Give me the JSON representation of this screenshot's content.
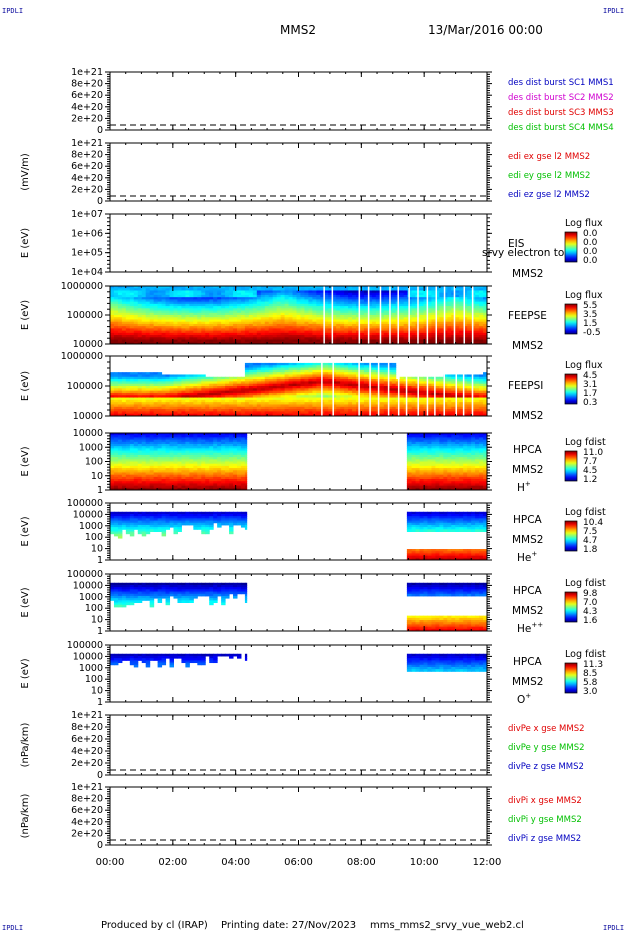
{
  "header": {
    "corner_label": "IPDLI",
    "spacecraft": "MMS2",
    "datetime": "13/Mar/2016 00:00"
  },
  "footer": {
    "produced_by": "Produced by cl (IRAP)",
    "printing_date": "Printing date: 27/Nov/2023",
    "filename": "mms_mms2_srvy_vue_web2.cl"
  },
  "colors": {
    "red": "#e00000",
    "magenta": "#d000d0",
    "green": "#00c000",
    "blue": "#0000c0",
    "axis": "#000000"
  },
  "chart_data": [
    {
      "type": "line",
      "id": "dist",
      "ylabel": "",
      "yticks": [
        "1e+21",
        "8e+20",
        "6e+20",
        "4e+20",
        "2e+20",
        "0"
      ],
      "legend": [
        {
          "text": "des dist burst SC1 MMS1",
          "color": "#0000c0"
        },
        {
          "text": "des dist burst SC2 MMS2",
          "color": "#d000d0"
        },
        {
          "text": "des dist burst SC3 MMS3",
          "color": "#e00000"
        },
        {
          "text": "des dist burst SC4 MMS4",
          "color": "#00c000"
        }
      ],
      "series": []
    },
    {
      "type": "line",
      "id": "edi",
      "ylabel": "(mV/m)",
      "yticks": [
        "1e+21",
        "8e+20",
        "6e+20",
        "4e+20",
        "2e+20",
        "0"
      ],
      "legend": [
        {
          "text": "edi ex gse l2 MMS2",
          "color": "#e00000"
        },
        {
          "text": "edi ey gse l2 MMS2",
          "color": "#00c000"
        },
        {
          "text": "edi ez gse l2 MMS2",
          "color": "#0000c0"
        }
      ],
      "series": []
    },
    {
      "type": "heatmap",
      "id": "eis",
      "ylabel": "E (eV)",
      "yticks": [
        "1e+07",
        "1e+06",
        "1e+05",
        "1e+04"
      ],
      "instrument": "EIS",
      "spacecraft": "MMS2",
      "overlay_text": "srvy electron to",
      "cb_title": "Log flux",
      "cb_ticks": [
        "0.0",
        "0.0",
        "0.0",
        "0.0"
      ],
      "segments": []
    },
    {
      "type": "heatmap",
      "id": "feepse",
      "ylabel": "E (eV)",
      "yticks": [
        "1000000",
        "100000",
        "10000"
      ],
      "instrument": "FEEPSE",
      "spacecraft": "MMS2",
      "cb_title": "Log flux",
      "cb_ticks": [
        "5.5",
        "3.5",
        "1.5",
        "-0.5"
      ],
      "segments": [
        [
          0.0,
          12.0
        ]
      ]
    },
    {
      "type": "heatmap",
      "id": "feepsi",
      "ylabel": "E (eV)",
      "yticks": [
        "1000000",
        "100000",
        "10000"
      ],
      "instrument": "FEEPSI",
      "spacecraft": "MMS2",
      "cb_title": "Log flux",
      "cb_ticks": [
        "4.5",
        "3.1",
        "1.7",
        "0.3"
      ],
      "segments": [
        [
          0.0,
          12.0
        ]
      ]
    },
    {
      "type": "heatmap",
      "id": "hpca_h",
      "ylabel": "E (eV)",
      "yticks": [
        "10000",
        "1000",
        "100",
        "10",
        "1"
      ],
      "instrument": "HPCA",
      "spacecraft": "MMS2",
      "species": "H",
      "species_sup": "+",
      "cb_title": "Log fdist",
      "cb_ticks": [
        "11.0",
        "7.7",
        "4.5",
        "1.2"
      ],
      "segments": [
        [
          0.0,
          4.35
        ],
        [
          9.45,
          12.0
        ]
      ]
    },
    {
      "type": "heatmap",
      "id": "hpca_he",
      "ylabel": "E (eV)",
      "yticks": [
        "100000",
        "10000",
        "1000",
        "100",
        "10",
        "1"
      ],
      "instrument": "HPCA",
      "spacecraft": "MMS2",
      "species": "He",
      "species_sup": "+",
      "cb_title": "Log fdist",
      "cb_ticks": [
        "10.4",
        "7.5",
        "4.7",
        "1.8"
      ],
      "segments": [
        [
          0.0,
          4.35
        ],
        [
          9.45,
          12.0
        ]
      ]
    },
    {
      "type": "heatmap",
      "id": "hpca_he2",
      "ylabel": "E (eV)",
      "yticks": [
        "100000",
        "10000",
        "1000",
        "100",
        "10",
        "1"
      ],
      "instrument": "HPCA",
      "spacecraft": "MMS2",
      "species": "He",
      "species_sup": "++",
      "cb_title": "Log fdist",
      "cb_ticks": [
        "9.8",
        "7.0",
        "4.3",
        "1.6"
      ],
      "segments": [
        [
          0.0,
          4.35
        ],
        [
          9.45,
          12.0
        ]
      ]
    },
    {
      "type": "heatmap",
      "id": "hpca_o",
      "ylabel": "E (eV)",
      "yticks": [
        "100000",
        "10000",
        "1000",
        "100",
        "10",
        "1"
      ],
      "instrument": "HPCA",
      "spacecraft": "MMS2",
      "species": "O",
      "species_sup": "+",
      "cb_title": "Log fdist",
      "cb_ticks": [
        "11.3",
        "8.5",
        "5.8",
        "3.0"
      ],
      "segments": [
        [
          0.0,
          4.35
        ],
        [
          9.45,
          12.0
        ]
      ]
    },
    {
      "type": "line",
      "id": "divpe",
      "ylabel": "(nPa/km)",
      "yticks": [
        "1e+21",
        "8e+20",
        "6e+20",
        "4e+20",
        "2e+20",
        "0"
      ],
      "legend": [
        {
          "text": "divPe x gse MMS2",
          "color": "#e00000"
        },
        {
          "text": "divPe y gse MMS2",
          "color": "#00c000"
        },
        {
          "text": "divPe z gse MMS2",
          "color": "#0000c0"
        }
      ],
      "series": []
    },
    {
      "type": "line",
      "id": "divpi",
      "ylabel": "(nPa/km)",
      "yticks": [
        "1e+21",
        "8e+20",
        "6e+20",
        "4e+20",
        "2e+20",
        "0"
      ],
      "legend": [
        {
          "text": "divPi x gse MMS2",
          "color": "#e00000"
        },
        {
          "text": "divPi y gse MMS2",
          "color": "#00c000"
        },
        {
          "text": "divPi z gse MMS2",
          "color": "#0000c0"
        }
      ],
      "series": []
    }
  ],
  "time_axis": {
    "range_hours": [
      0,
      12
    ],
    "ticks": [
      "00:00",
      "02:00",
      "04:00",
      "06:00",
      "08:00",
      "10:00",
      "12:00"
    ]
  }
}
